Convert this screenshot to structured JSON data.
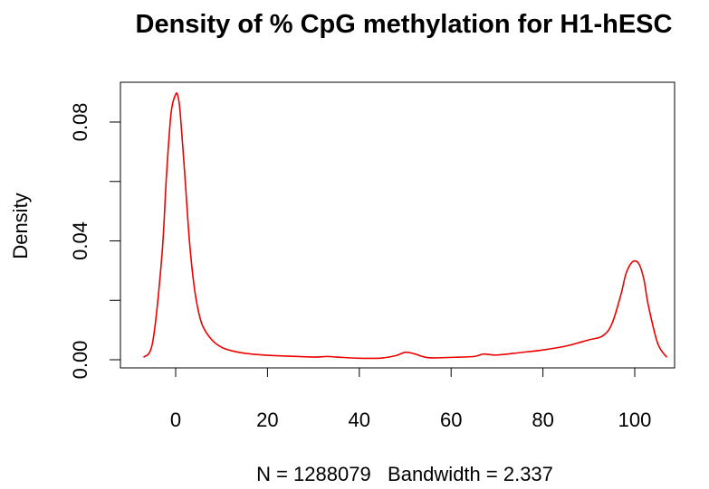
{
  "chart_data": {
    "type": "line",
    "title": "Density of % CpG methylation for H1-hESC",
    "xlabel": "N = 1288079   Bandwidth = 2.337",
    "ylabel": "Density",
    "xlim": [
      -10,
      110
    ],
    "ylim": [
      0,
      0.092
    ],
    "x_ticks": [
      0,
      20,
      40,
      60,
      80,
      100
    ],
    "x_tick_labels": [
      "0",
      "20",
      "40",
      "60",
      "80",
      "100"
    ],
    "y_ticks": [
      0,
      0.02,
      0.04,
      0.06,
      0.08
    ],
    "y_tick_labels": [
      "0.00",
      "",
      "0.04",
      "",
      "0.08"
    ],
    "grid": false,
    "legend": "none",
    "series": [
      {
        "color": "#ee0000",
        "x": [
          -7,
          -5,
          -3,
          -2,
          -1,
          0,
          0.5,
          1,
          2,
          3,
          4,
          5,
          6,
          8,
          10,
          12,
          15,
          20,
          25,
          30,
          33,
          35,
          40,
          45,
          48,
          50,
          52,
          55,
          60,
          65,
          67,
          70,
          75,
          80,
          85,
          90,
          93,
          95,
          97,
          98,
          99,
          100,
          101,
          102,
          103,
          105,
          107
        ],
        "y": [
          0.0008,
          0.006,
          0.035,
          0.062,
          0.083,
          0.0893,
          0.0886,
          0.083,
          0.062,
          0.04,
          0.025,
          0.016,
          0.011,
          0.0065,
          0.0042,
          0.0031,
          0.0022,
          0.0015,
          0.0012,
          0.0009,
          0.0011,
          0.0009,
          0.0005,
          0.0006,
          0.0014,
          0.0025,
          0.002,
          0.0007,
          0.0008,
          0.0011,
          0.0019,
          0.0016,
          0.0024,
          0.0033,
          0.0046,
          0.0067,
          0.008,
          0.012,
          0.022,
          0.0285,
          0.032,
          0.0333,
          0.032,
          0.027,
          0.018,
          0.0055,
          0.0008
        ]
      }
    ]
  }
}
